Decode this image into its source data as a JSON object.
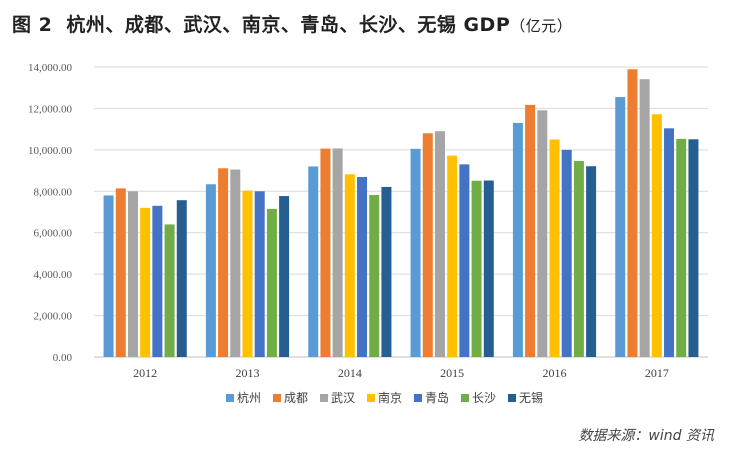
{
  "figure": {
    "label": "图 2",
    "title": "杭州、成都、武汉、南京、青岛、长沙、无锡 GDP",
    "unit": "（亿元）",
    "source": "数据来源：wind 资讯"
  },
  "chart_data": {
    "type": "bar",
    "categories": [
      "2012",
      "2013",
      "2014",
      "2015",
      "2016",
      "2017"
    ],
    "series": [
      {
        "name": "杭州",
        "color": "#5B9BD5",
        "values": [
          7800,
          8340,
          9200,
          10050,
          11300,
          12550
        ]
      },
      {
        "name": "成都",
        "color": "#ED7D31",
        "values": [
          8140,
          9110,
          10060,
          10800,
          12170,
          13890
        ]
      },
      {
        "name": "武汉",
        "color": "#A5A5A5",
        "values": [
          8000,
          9050,
          10070,
          10900,
          11910,
          13410
        ]
      },
      {
        "name": "南京",
        "color": "#FFC000",
        "values": [
          7200,
          8030,
          8820,
          9720,
          10500,
          11720
        ]
      },
      {
        "name": "青岛",
        "color": "#4472C4",
        "values": [
          7300,
          8000,
          8690,
          9300,
          10000,
          11040
        ]
      },
      {
        "name": "长沙",
        "color": "#70AD47",
        "values": [
          6400,
          7150,
          7820,
          8510,
          9460,
          10530
        ]
      },
      {
        "name": "无锡",
        "color": "#255E91",
        "values": [
          7570,
          7770,
          8210,
          8520,
          9210,
          10510
        ]
      }
    ],
    "ylim": [
      0,
      14000
    ],
    "yticks": [
      0,
      2000,
      4000,
      6000,
      8000,
      10000,
      12000,
      14000
    ],
    "ytick_labels": [
      "0.00",
      "2,000.00",
      "4,000.00",
      "6,000.00",
      "8,000.00",
      "10,000.00",
      "12,000.00",
      "14,000.00"
    ],
    "grid": true,
    "legend_position": "bottom"
  }
}
